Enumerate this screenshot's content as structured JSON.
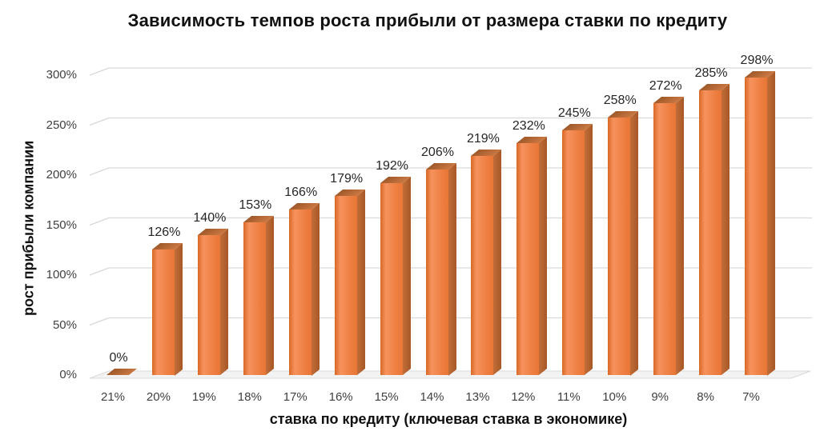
{
  "chart_data": {
    "type": "bar",
    "title": "Зависимость темпов роста прибыли от размера ставки по кредиту",
    "xlabel": "ставка по кредиту (ключевая ставка в экономике)",
    "ylabel": "рост прибыли компании",
    "categories": [
      "21%",
      "20%",
      "19%",
      "18%",
      "17%",
      "16%",
      "15%",
      "14%",
      "13%",
      "12%",
      "11%",
      "10%",
      "9%",
      "8%",
      "7%"
    ],
    "values": [
      0,
      126,
      140,
      153,
      166,
      179,
      192,
      206,
      219,
      232,
      245,
      258,
      272,
      285,
      298
    ],
    "data_labels": [
      "0%",
      "126%",
      "140%",
      "153%",
      "166%",
      "179%",
      "192%",
      "206%",
      "219%",
      "232%",
      "245%",
      "258%",
      "272%",
      "285%",
      "298%"
    ],
    "y_ticks": [
      {
        "value": 0,
        "label": "0%"
      },
      {
        "value": 50,
        "label": "50%"
      },
      {
        "value": 100,
        "label": "100%"
      },
      {
        "value": 150,
        "label": "150%"
      },
      {
        "value": 200,
        "label": "200%"
      },
      {
        "value": 250,
        "label": "250%"
      },
      {
        "value": 300,
        "label": "300%"
      }
    ],
    "ylim": [
      0,
      300
    ],
    "grid": true,
    "legend": "none",
    "effect": "3d-column",
    "style": {
      "bar_front": "#ee7f42",
      "bar_front_light": "#f6925e",
      "bar_front_dark": "#d96826",
      "bar_front_right": "#e87636",
      "bar_side_light": "#c26d39",
      "bar_side_dark": "#a65826",
      "bar_top_light": "#cb7943",
      "bar_top_dark": "#9e5829",
      "gridline": "#d9d9d9",
      "floor_fill": "#f3f3f3",
      "floor_edge": "#d8d8d8",
      "title_color": "#111111",
      "tick_color": "#3f3f3f",
      "value_label_color": "#262626",
      "background": "#ffffff"
    }
  }
}
